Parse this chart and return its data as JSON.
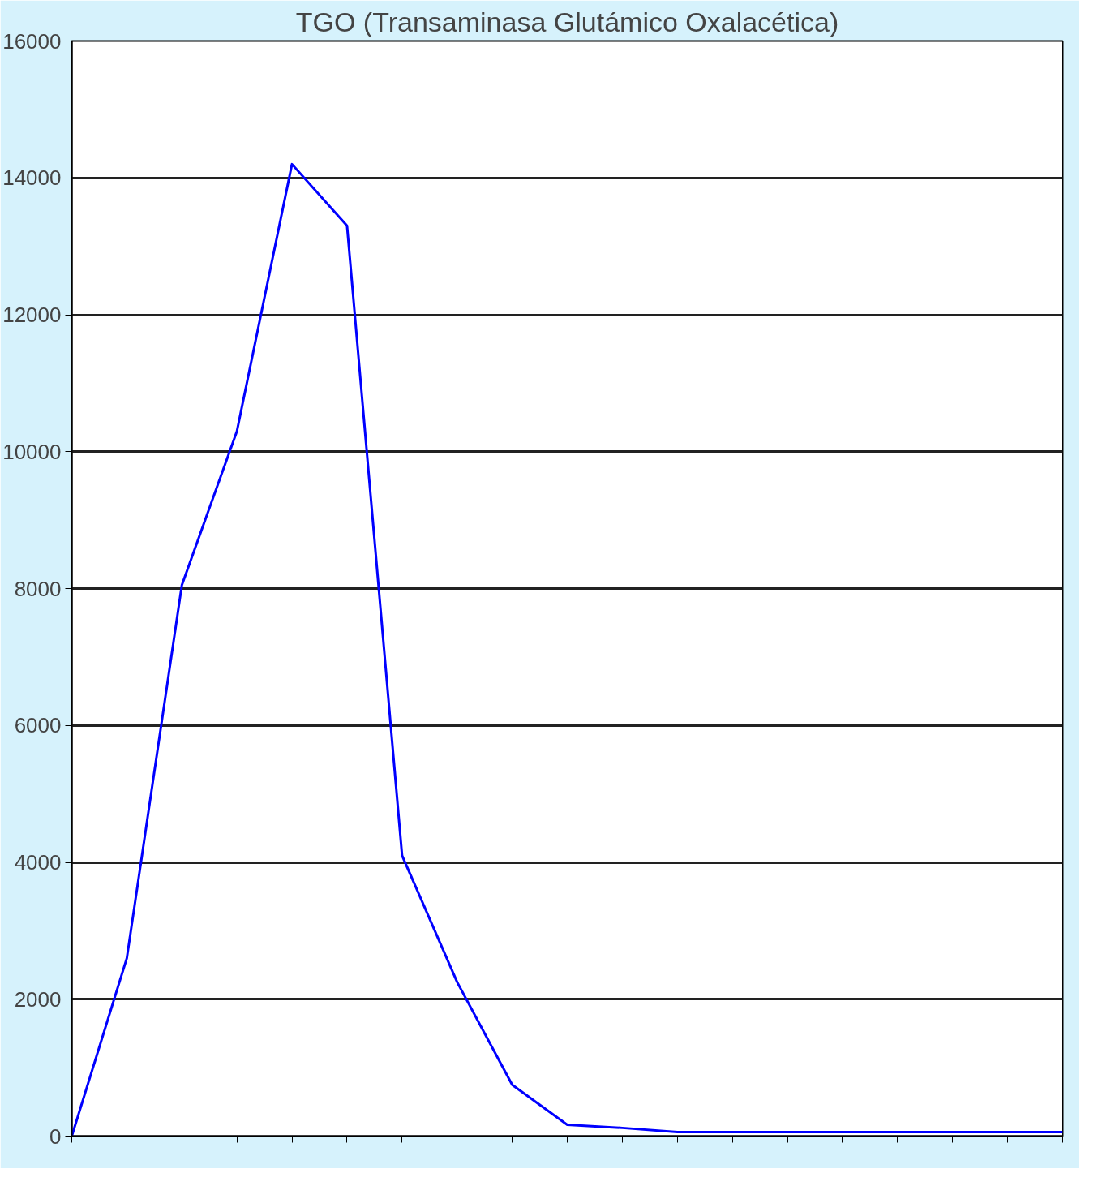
{
  "chart_data": {
    "type": "line",
    "title": "TGO (Transaminasa Glutámico Oxalacética)",
    "categories": [
      null,
      null,
      null,
      null,
      null,
      null,
      null,
      null,
      null,
      null,
      null,
      null,
      null,
      null,
      null,
      null,
      null,
      null,
      null
    ],
    "series": [
      {
        "color": "#0000ff",
        "values": [
          0,
          2600,
          8050,
          10300,
          14200,
          13300,
          4100,
          2250,
          750,
          165,
          120,
          60,
          60,
          60,
          60,
          60,
          60,
          60,
          60
        ]
      }
    ],
    "ylim": [
      0,
      16000
    ],
    "yticks": [
      0,
      2000,
      4000,
      6000,
      8000,
      10000,
      12000,
      14000,
      16000
    ],
    "grid": "y",
    "marker": "none",
    "line_style": "solid"
  }
}
